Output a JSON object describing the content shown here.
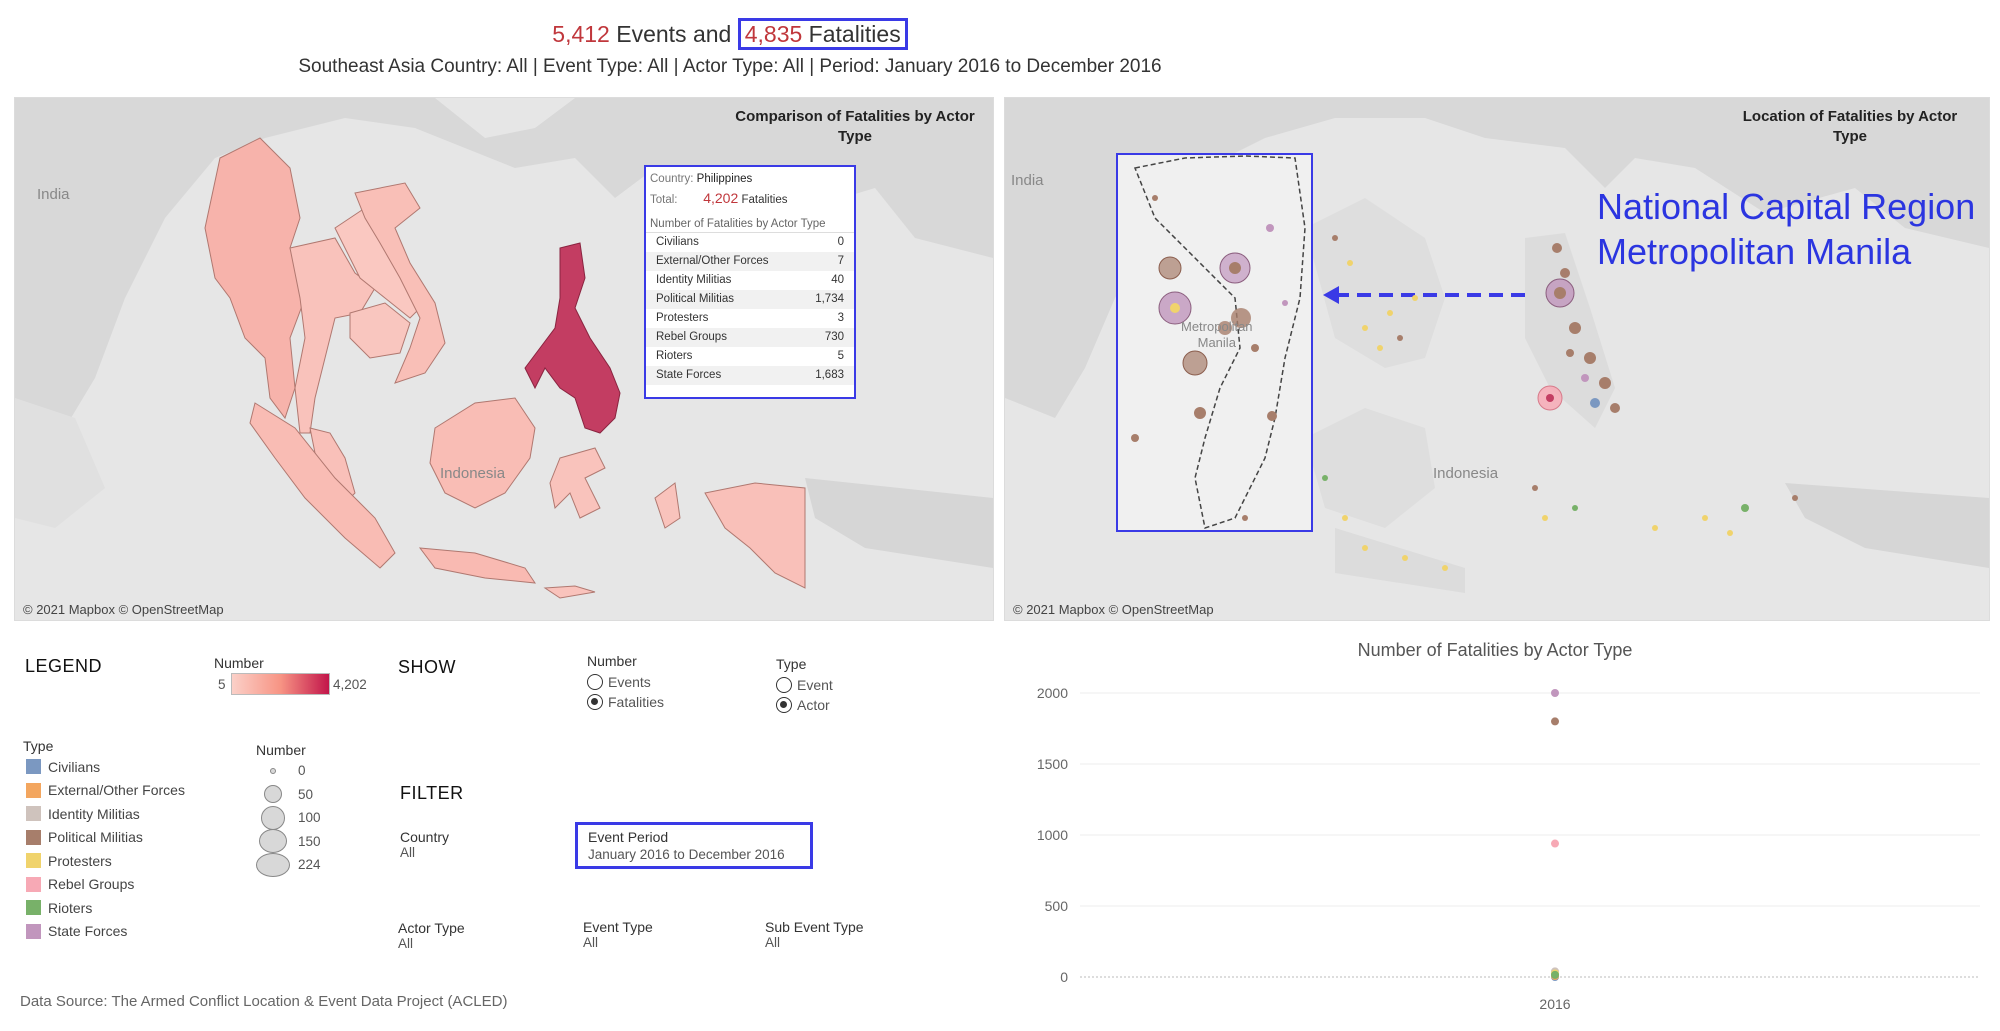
{
  "header": {
    "events_count": "5,412",
    "events_word": "Events and",
    "fatalities_count": "4,835",
    "fatalities_word": "Fatalities",
    "subtitle": "Southeast Asia Country: All | Event Type: All | Actor Type: All | Period: January 2016 to December 2016"
  },
  "left_map": {
    "title_line1": "Comparison of Fatalities by Actor",
    "title_line2": "Type",
    "credit": "© 2021 Mapbox © OpenStreetMap",
    "labels": {
      "india": "India",
      "indonesia": "Indonesia"
    },
    "tooltip": {
      "country_label": "Country:",
      "country_value": "Philippines",
      "total_label": "Total:",
      "total_value": "4,202",
      "total_unit": "Fatalities",
      "table_title": "Number of Fatalities by Actor Type",
      "rows": [
        {
          "name": "Civilians",
          "value": "0"
        },
        {
          "name": "External/Other Forces",
          "value": "7"
        },
        {
          "name": "Identity Militias",
          "value": "40"
        },
        {
          "name": "Political Militias",
          "value": "1,734"
        },
        {
          "name": "Protesters",
          "value": "3"
        },
        {
          "name": "Rebel Groups",
          "value": "730"
        },
        {
          "name": "Rioters",
          "value": "5"
        },
        {
          "name": "State Forces",
          "value": "1,683"
        }
      ]
    }
  },
  "right_map": {
    "title_line1": "Location of Fatalities by Actor",
    "title_line2": "Type",
    "credit": "© 2021 Mapbox © OpenStreetMap",
    "labels": {
      "india": "India",
      "indonesia": "Indonesia",
      "metro_manila_1": "Metropolitan",
      "metro_manila_2": "Manila"
    },
    "annotation_line1": "National Capital Region",
    "annotation_line2": "Metropolitan Manila"
  },
  "legend": {
    "heading": "LEGEND",
    "number_label": "Number",
    "number_min": "5",
    "number_max": "4,202",
    "type_label": "Type",
    "types": [
      {
        "name": "Civilians",
        "color": "#7b98c1"
      },
      {
        "name": "External/Other Forces",
        "color": "#f3a65f"
      },
      {
        "name": "Identity Militias",
        "color": "#cfc3bd"
      },
      {
        "name": "Political Militias",
        "color": "#a77e6b"
      },
      {
        "name": "Protesters",
        "color": "#f0d36c"
      },
      {
        "name": "Rebel Groups",
        "color": "#f7a9b5"
      },
      {
        "name": "Rioters",
        "color": "#78b169"
      },
      {
        "name": "State Forces",
        "color": "#c196bd"
      }
    ],
    "size_label": "Number",
    "sizes": [
      "0",
      "50",
      "100",
      "150",
      "224"
    ]
  },
  "show": {
    "heading": "SHOW",
    "number_group": {
      "label": "Number",
      "options": [
        "Events",
        "Fatalities"
      ],
      "selected": "Fatalities"
    },
    "type_group": {
      "label": "Type",
      "options": [
        "Event",
        "Actor"
      ],
      "selected": "Actor"
    }
  },
  "filter": {
    "heading": "FILTER",
    "country": {
      "label": "Country",
      "value": "All"
    },
    "event_period": {
      "label": "Event Period",
      "value": "January 2016 to December 2016"
    },
    "actor_type": {
      "label": "Actor Type",
      "value": "All"
    },
    "event_type": {
      "label": "Event Type",
      "value": "All"
    },
    "sub_event_type": {
      "label": "Sub Event Type",
      "value": "All"
    }
  },
  "chart_data": {
    "type": "scatter",
    "title": "Number of Fatalities by Actor Type",
    "categories": [
      "2016"
    ],
    "yticks": [
      0,
      500,
      1000,
      1500,
      2000
    ],
    "ylim": [
      0,
      2000
    ],
    "grid": true,
    "series": [
      {
        "name": "Civilians",
        "color": "#7b98c1",
        "values": [
          0
        ]
      },
      {
        "name": "External/Other Forces",
        "color": "#f3a65f",
        "values": [
          7
        ]
      },
      {
        "name": "Identity Militias",
        "color": "#cfc3bd",
        "values": [
          40
        ]
      },
      {
        "name": "Political Militias",
        "color": "#a77e6b",
        "values": [
          1800
        ]
      },
      {
        "name": "Protesters",
        "color": "#f0d36c",
        "values": [
          25
        ]
      },
      {
        "name": "Rebel Groups",
        "color": "#f7a9b5",
        "values": [
          940
        ]
      },
      {
        "name": "Rioters",
        "color": "#78b169",
        "values": [
          15
        ]
      },
      {
        "name": "State Forces",
        "color": "#c196bd",
        "values": [
          2000
        ]
      }
    ]
  },
  "footer": {
    "data_source": "Data Source: The Armed Conflict Location & Event Data Project (ACLED)"
  }
}
